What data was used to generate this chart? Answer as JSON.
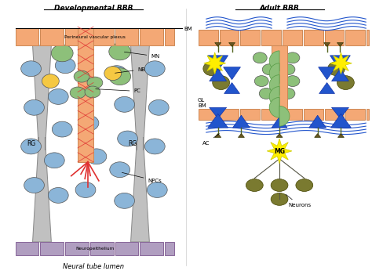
{
  "bg_color": "#ffffff",
  "salmon": "#F4A875",
  "gray": "#B0B0B0",
  "blue_cell": "#8BB5D8",
  "green_cell": "#8DC07A",
  "yellow_cell": "#F5C842",
  "olive": "#7A7A30",
  "blue_arrow": "#2255CC",
  "purple": "#B09EC0",
  "red": "#E03030",
  "yellow_star": "#FFEE00",
  "title_dev": "Developmental BBB",
  "title_adult": "Adult BBB",
  "label_pvp": "Perineural vascular plexus",
  "label_bm": "BM",
  "label_mn": "MN",
  "label_nb": "NB",
  "label_pc": "PC",
  "label_rg": "RG",
  "label_npcs": "NPCs",
  "label_neuro": "Neuropeithelium",
  "label_lumen": "Neural tube lumen",
  "label_gl": "GL",
  "label_bm2": "BM",
  "label_ac": "AC",
  "label_mg": "MG",
  "label_neurons": "Neurons"
}
